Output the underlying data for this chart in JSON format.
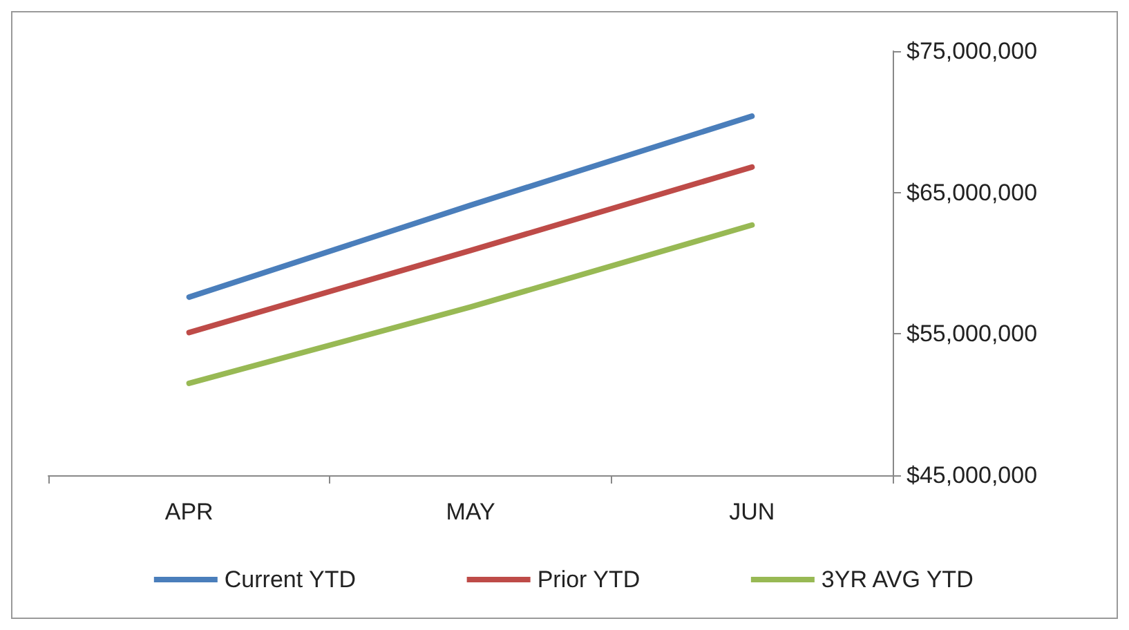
{
  "chart_data": {
    "type": "line",
    "categories": [
      "APR",
      "MAY",
      "JUN"
    ],
    "series": [
      {
        "name": "Current YTD",
        "color": "#4a7ebb",
        "values": [
          57600000,
          64100000,
          70400000
        ]
      },
      {
        "name": "Prior YTD",
        "color": "#be4b48",
        "values": [
          55100000,
          60900000,
          66800000
        ]
      },
      {
        "name": "3YR AVG YTD",
        "color": "#98b954",
        "values": [
          51500000,
          56900000,
          62700000
        ]
      }
    ],
    "ylim": [
      45000000,
      75000000
    ],
    "yticks": [
      {
        "value": 45000000,
        "label": "$45,000,000"
      },
      {
        "value": 55000000,
        "label": "$55,000,000"
      },
      {
        "value": 65000000,
        "label": "$65,000,000"
      },
      {
        "value": 75000000,
        "label": "$75,000,000"
      }
    ],
    "grid": false,
    "legend": "bottom",
    "marker": "none",
    "line_style": "solid"
  }
}
